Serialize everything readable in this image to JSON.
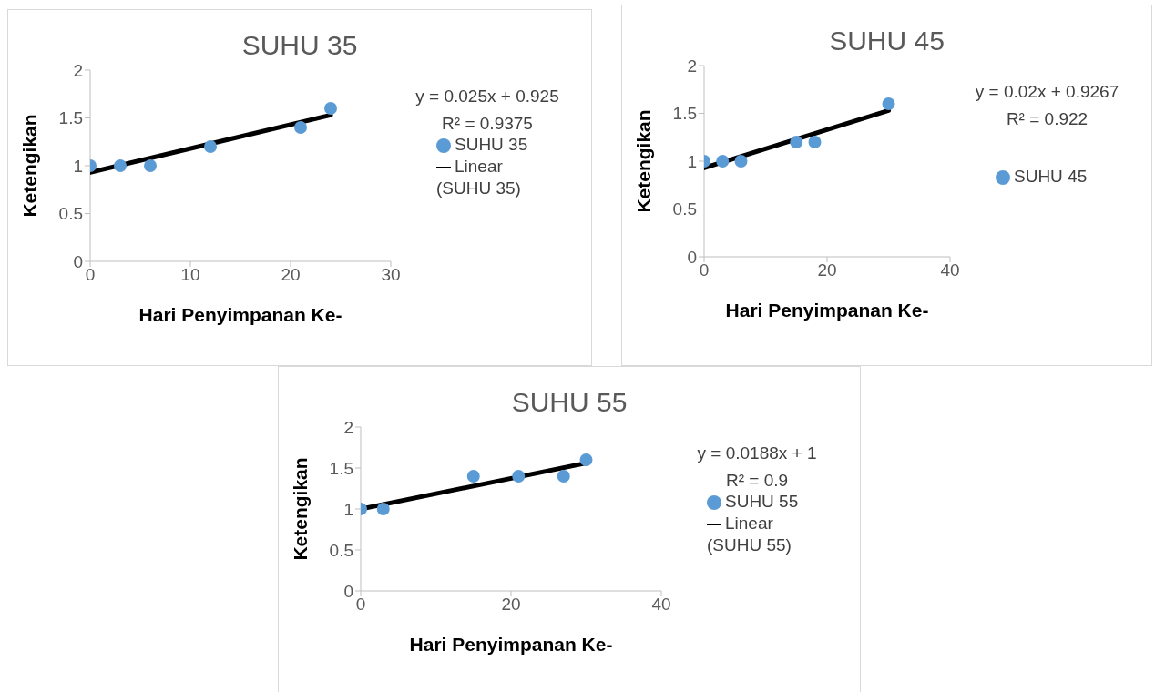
{
  "chart_data": [
    {
      "type": "scatter",
      "title": "SUHU 35",
      "xlabel": "Hari Penyimpanan Ke-",
      "ylabel": "Ketengikan",
      "xlim": [
        0,
        30
      ],
      "xticks": [
        0,
        10,
        20,
        30
      ],
      "ylim": [
        0,
        2
      ],
      "yticks": [
        0,
        0.5,
        1,
        1.5,
        2
      ],
      "legend": "right",
      "annotations": [
        "y = 0.025x + 0.925",
        "R² = 0.9375"
      ],
      "series": [
        {
          "name": "SUHU 35",
          "type": "scatter",
          "marker": "circle",
          "color": "#5b9bd5",
          "x": [
            0,
            3,
            6,
            12,
            21,
            24
          ],
          "values": [
            1,
            1,
            1,
            1.2,
            1.4,
            1.6
          ]
        },
        {
          "name": "Linear (SUHU 35)",
          "type": "line",
          "marker": "none",
          "line_style": "solid",
          "color": "#000000",
          "x": [
            0,
            24
          ],
          "values": [
            0.93,
            1.53
          ]
        }
      ]
    },
    {
      "type": "scatter",
      "title": "SUHU 45",
      "xlabel": "Hari Penyimpanan Ke-",
      "ylabel": "Ketengikan",
      "xlim": [
        0,
        40
      ],
      "xticks": [
        0,
        20,
        40
      ],
      "ylim": [
        0,
        2
      ],
      "yticks": [
        0,
        0.5,
        1,
        1.5,
        2
      ],
      "legend": "right",
      "annotations": [
        "y = 0.02x + 0.9267",
        "R² = 0.922"
      ],
      "series": [
        {
          "name": "SUHU 45",
          "type": "scatter",
          "marker": "circle",
          "color": "#5b9bd5",
          "x": [
            0,
            3,
            6,
            15,
            18,
            30
          ],
          "values": [
            1,
            1,
            1,
            1.2,
            1.2,
            1.6
          ]
        },
        {
          "type": "line",
          "marker": "none",
          "line_style": "solid",
          "color": "#000000",
          "x": [
            0,
            30
          ],
          "values": [
            0.93,
            1.53
          ]
        }
      ]
    },
    {
      "type": "scatter",
      "title": "SUHU 55",
      "xlabel": "Hari Penyimpanan Ke-",
      "ylabel": "Ketengikan",
      "xlim": [
        0,
        40
      ],
      "xticks": [
        0,
        20,
        40
      ],
      "ylim": [
        0,
        2
      ],
      "yticks": [
        0,
        0.5,
        1,
        1.5,
        2
      ],
      "legend": "right",
      "annotations": [
        "y = 0.0188x + 1",
        "R² = 0.9"
      ],
      "series": [
        {
          "name": "SUHU 55",
          "type": "scatter",
          "marker": "circle",
          "color": "#5b9bd5",
          "x": [
            0,
            3,
            15,
            21,
            27,
            30
          ],
          "values": [
            1,
            1,
            1.4,
            1.4,
            1.4,
            1.6
          ]
        },
        {
          "name": "Linear (SUHU 55)",
          "type": "line",
          "marker": "none",
          "line_style": "solid",
          "color": "#000000",
          "x": [
            0,
            30
          ],
          "values": [
            1,
            1.56
          ]
        }
      ]
    }
  ]
}
